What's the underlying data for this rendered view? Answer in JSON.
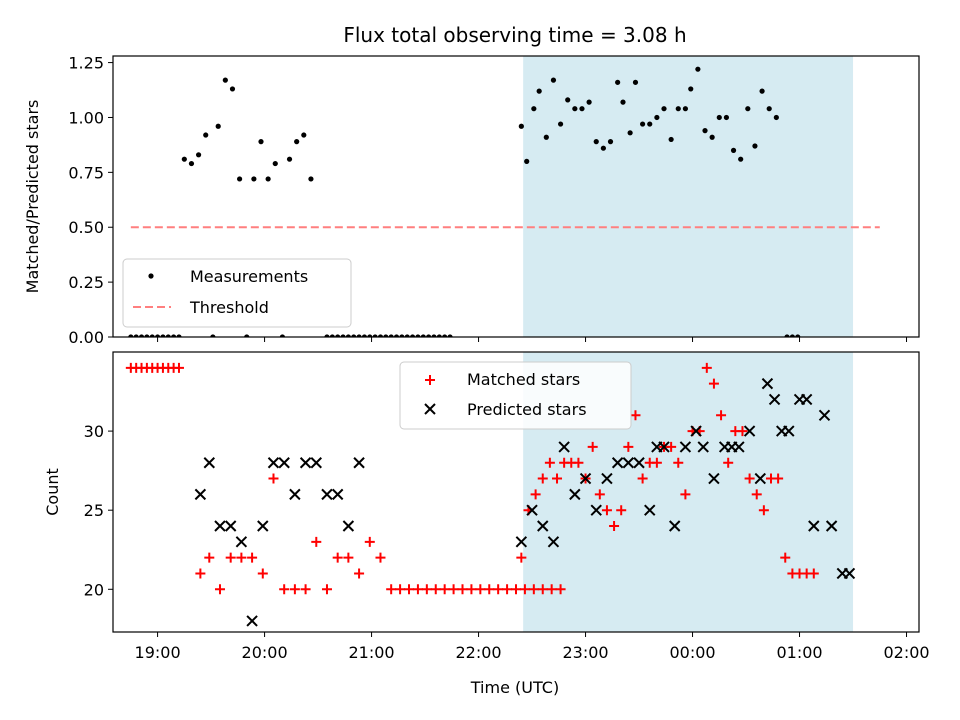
{
  "figure": {
    "title": "Flux total observing time = 3.08 h",
    "xlabel": "Time (UTC)",
    "shade_color": "#add8e6",
    "shade_alpha": 0.5
  },
  "chart_data": [
    {
      "type": "scatter",
      "panel": "top",
      "ylabel": "Matched/Predicted stars",
      "xlim": [
        "18:35",
        "02:07"
      ],
      "ylim": [
        0,
        1.28
      ],
      "yticks": [
        "0.00",
        "0.25",
        "0.50",
        "0.75",
        "1.00",
        "1.25"
      ],
      "xticks": [
        "19:00",
        "20:00",
        "21:00",
        "22:00",
        "23:00",
        "00:00",
        "01:00",
        "02:00"
      ],
      "shaded_interval": [
        "22:25",
        "01:30"
      ],
      "legend": {
        "position": "lower-left",
        "entries": [
          "Measurements",
          "Threshold"
        ]
      },
      "series": [
        {
          "name": "Measurements",
          "color": "#000000",
          "marker": "dot",
          "points": [
            [
              "18:45",
              0
            ],
            [
              "18:48",
              0
            ],
            [
              "18:51",
              0
            ],
            [
              "18:54",
              0
            ],
            [
              "18:57",
              0
            ],
            [
              "19:00",
              0
            ],
            [
              "19:03",
              0
            ],
            [
              "19:06",
              0
            ],
            [
              "19:09",
              0
            ],
            [
              "19:12",
              0
            ],
            [
              "19:15",
              0.81
            ],
            [
              "19:19",
              0.79
            ],
            [
              "19:23",
              0.83
            ],
            [
              "19:27",
              0.92
            ],
            [
              "19:31",
              0
            ],
            [
              "19:34",
              0.96
            ],
            [
              "19:38",
              1.17
            ],
            [
              "19:42",
              1.13
            ],
            [
              "19:46",
              0.72
            ],
            [
              "19:50",
              0
            ],
            [
              "19:54",
              0.72
            ],
            [
              "19:58",
              0.89
            ],
            [
              "20:02",
              0.72
            ],
            [
              "20:06",
              0.79
            ],
            [
              "20:10",
              0
            ],
            [
              "20:14",
              0.81
            ],
            [
              "20:18",
              0.89
            ],
            [
              "20:22",
              0.92
            ],
            [
              "20:26",
              0.72
            ],
            [
              "20:35",
              0
            ],
            [
              "20:38",
              0
            ],
            [
              "20:41",
              0
            ],
            [
              "20:44",
              0
            ],
            [
              "20:47",
              0
            ],
            [
              "20:50",
              0
            ],
            [
              "20:53",
              0
            ],
            [
              "20:56",
              0
            ],
            [
              "20:59",
              0
            ],
            [
              "21:02",
              0
            ],
            [
              "21:05",
              0
            ],
            [
              "21:08",
              0
            ],
            [
              "21:11",
              0
            ],
            [
              "21:14",
              0
            ],
            [
              "21:17",
              0
            ],
            [
              "21:20",
              0
            ],
            [
              "21:23",
              0
            ],
            [
              "21:26",
              0
            ],
            [
              "21:29",
              0
            ],
            [
              "21:32",
              0
            ],
            [
              "21:35",
              0
            ],
            [
              "21:38",
              0
            ],
            [
              "21:41",
              0
            ],
            [
              "21:44",
              0
            ],
            [
              "22:24",
              0.96
            ],
            [
              "22:27",
              0.8
            ],
            [
              "22:31",
              1.04
            ],
            [
              "22:34",
              1.12
            ],
            [
              "22:38",
              0.91
            ],
            [
              "22:42",
              1.17
            ],
            [
              "22:46",
              0.97
            ],
            [
              "22:50",
              1.08
            ],
            [
              "22:54",
              1.04
            ],
            [
              "22:58",
              1.04
            ],
            [
              "23:02",
              1.07
            ],
            [
              "23:06",
              0.89
            ],
            [
              "23:10",
              0.86
            ],
            [
              "23:14",
              0.89
            ],
            [
              "23:18",
              1.16
            ],
            [
              "23:21",
              1.07
            ],
            [
              "23:25",
              0.93
            ],
            [
              "23:28",
              1.16
            ],
            [
              "23:32",
              0.97
            ],
            [
              "23:36",
              0.97
            ],
            [
              "23:40",
              1.0
            ],
            [
              "23:44",
              1.04
            ],
            [
              "23:48",
              0.9
            ],
            [
              "23:52",
              1.04
            ],
            [
              "23:56",
              1.04
            ],
            [
              "23:59",
              1.13
            ],
            [
              "00:03",
              1.22
            ],
            [
              "00:07",
              0.94
            ],
            [
              "00:11",
              0.91
            ],
            [
              "00:15",
              1.0
            ],
            [
              "00:19",
              1.0
            ],
            [
              "00:23",
              0.85
            ],
            [
              "00:27",
              0.81
            ],
            [
              "00:31",
              1.04
            ],
            [
              "00:35",
              0.87
            ],
            [
              "00:39",
              1.12
            ],
            [
              "00:43",
              1.04
            ],
            [
              "00:47",
              1.0
            ],
            [
              "00:53",
              0
            ],
            [
              "00:56",
              0
            ],
            [
              "00:59",
              0
            ]
          ]
        },
        {
          "name": "Threshold",
          "color": "#ff7f7f",
          "style": "dashed",
          "y": 0.5,
          "x": [
            "18:45",
            "01:45"
          ]
        }
      ]
    },
    {
      "type": "scatter",
      "panel": "bottom",
      "ylabel": "Count",
      "xlim": [
        "18:35",
        "02:07"
      ],
      "ylim": [
        17.3,
        35
      ],
      "yticks": [
        "20",
        "25",
        "30"
      ],
      "xticks": [
        "19:00",
        "20:00",
        "21:00",
        "22:00",
        "23:00",
        "00:00",
        "01:00",
        "02:00"
      ],
      "shaded_interval": [
        "22:25",
        "01:30"
      ],
      "legend": {
        "position": "upper-center",
        "entries": [
          "Matched stars",
          "Predicted stars"
        ]
      },
      "series": [
        {
          "name": "Matched stars",
          "color": "#ff0000",
          "marker": "plus",
          "points": [
            [
              "18:45",
              34
            ],
            [
              "18:48",
              34
            ],
            [
              "18:51",
              34
            ],
            [
              "18:54",
              34
            ],
            [
              "18:57",
              34
            ],
            [
              "19:00",
              34
            ],
            [
              "19:03",
              34
            ],
            [
              "19:06",
              34
            ],
            [
              "19:09",
              34
            ],
            [
              "19:12",
              34
            ],
            [
              "19:24",
              21
            ],
            [
              "19:29",
              22
            ],
            [
              "19:35",
              20
            ],
            [
              "19:41",
              22
            ],
            [
              "19:47",
              22
            ],
            [
              "19:53",
              22
            ],
            [
              "19:59",
              21
            ],
            [
              "20:05",
              27
            ],
            [
              "20:11",
              20
            ],
            [
              "20:17",
              20
            ],
            [
              "20:23",
              20
            ],
            [
              "20:29",
              23
            ],
            [
              "20:35",
              20
            ],
            [
              "20:41",
              22
            ],
            [
              "20:47",
              22
            ],
            [
              "20:53",
              21
            ],
            [
              "20:59",
              23
            ],
            [
              "21:05",
              22
            ],
            [
              "21:11",
              20
            ],
            [
              "21:16",
              20
            ],
            [
              "21:21",
              20
            ],
            [
              "21:26",
              20
            ],
            [
              "21:31",
              20
            ],
            [
              "21:36",
              20
            ],
            [
              "21:41",
              20
            ],
            [
              "21:46",
              20
            ],
            [
              "21:51",
              20
            ],
            [
              "21:56",
              20
            ],
            [
              "22:01",
              20
            ],
            [
              "22:06",
              20
            ],
            [
              "22:11",
              20
            ],
            [
              "22:16",
              20
            ],
            [
              "22:21",
              20
            ],
            [
              "22:26",
              20
            ],
            [
              "22:31",
              20
            ],
            [
              "22:36",
              20
            ],
            [
              "22:41",
              20
            ],
            [
              "22:46",
              20
            ],
            [
              "22:24",
              22
            ],
            [
              "22:28",
              25
            ],
            [
              "22:32",
              26
            ],
            [
              "22:36",
              27
            ],
            [
              "22:40",
              28
            ],
            [
              "22:44",
              27
            ],
            [
              "22:48",
              28
            ],
            [
              "22:52",
              28
            ],
            [
              "22:56",
              28
            ],
            [
              "23:00",
              27
            ],
            [
              "23:04",
              29
            ],
            [
              "23:08",
              26
            ],
            [
              "23:12",
              25
            ],
            [
              "23:16",
              24
            ],
            [
              "23:20",
              25
            ],
            [
              "23:24",
              29
            ],
            [
              "23:28",
              31
            ],
            [
              "23:32",
              27
            ],
            [
              "23:36",
              28
            ],
            [
              "23:40",
              28
            ],
            [
              "23:44",
              29
            ],
            [
              "23:48",
              29
            ],
            [
              "23:52",
              28
            ],
            [
              "23:56",
              26
            ],
            [
              "00:00",
              30
            ],
            [
              "00:04",
              30
            ],
            [
              "00:08",
              34
            ],
            [
              "00:12",
              33
            ],
            [
              "00:16",
              31
            ],
            [
              "00:20",
              28
            ],
            [
              "00:24",
              30
            ],
            [
              "00:28",
              30
            ],
            [
              "00:32",
              27
            ],
            [
              "00:36",
              26
            ],
            [
              "00:40",
              25
            ],
            [
              "00:44",
              27
            ],
            [
              "00:48",
              27
            ],
            [
              "00:52",
              22
            ],
            [
              "00:56",
              21
            ],
            [
              "01:00",
              21
            ],
            [
              "01:04",
              21
            ],
            [
              "01:08",
              21
            ]
          ]
        },
        {
          "name": "Predicted stars",
          "color": "#000000",
          "marker": "x",
          "points": [
            [
              "19:24",
              26
            ],
            [
              "19:29",
              28
            ],
            [
              "19:35",
              24
            ],
            [
              "19:41",
              24
            ],
            [
              "19:47",
              23
            ],
            [
              "19:53",
              18
            ],
            [
              "19:59",
              24
            ],
            [
              "20:05",
              28
            ],
            [
              "20:11",
              28
            ],
            [
              "20:17",
              26
            ],
            [
              "20:23",
              28
            ],
            [
              "20:29",
              28
            ],
            [
              "20:35",
              26
            ],
            [
              "20:41",
              26
            ],
            [
              "20:47",
              24
            ],
            [
              "20:53",
              28
            ],
            [
              "22:24",
              23
            ],
            [
              "22:30",
              25
            ],
            [
              "22:36",
              24
            ],
            [
              "22:42",
              23
            ],
            [
              "22:48",
              29
            ],
            [
              "22:54",
              26
            ],
            [
              "23:00",
              27
            ],
            [
              "23:06",
              25
            ],
            [
              "23:12",
              27
            ],
            [
              "23:18",
              28
            ],
            [
              "23:24",
              28
            ],
            [
              "23:30",
              28
            ],
            [
              "23:36",
              25
            ],
            [
              "23:40",
              29
            ],
            [
              "23:44",
              29
            ],
            [
              "23:50",
              24
            ],
            [
              "23:56",
              29
            ],
            [
              "00:02",
              30
            ],
            [
              "00:06",
              29
            ],
            [
              "00:12",
              27
            ],
            [
              "00:18",
              29
            ],
            [
              "00:22",
              29
            ],
            [
              "00:26",
              29
            ],
            [
              "00:32",
              30
            ],
            [
              "00:38",
              27
            ],
            [
              "00:42",
              33
            ],
            [
              "00:46",
              32
            ],
            [
              "00:50",
              30
            ],
            [
              "00:54",
              30
            ],
            [
              "01:00",
              32
            ],
            [
              "01:04",
              32
            ],
            [
              "01:08",
              24
            ],
            [
              "01:14",
              31
            ],
            [
              "01:18",
              24
            ],
            [
              "01:24",
              21
            ],
            [
              "01:28",
              21
            ]
          ]
        }
      ]
    }
  ]
}
